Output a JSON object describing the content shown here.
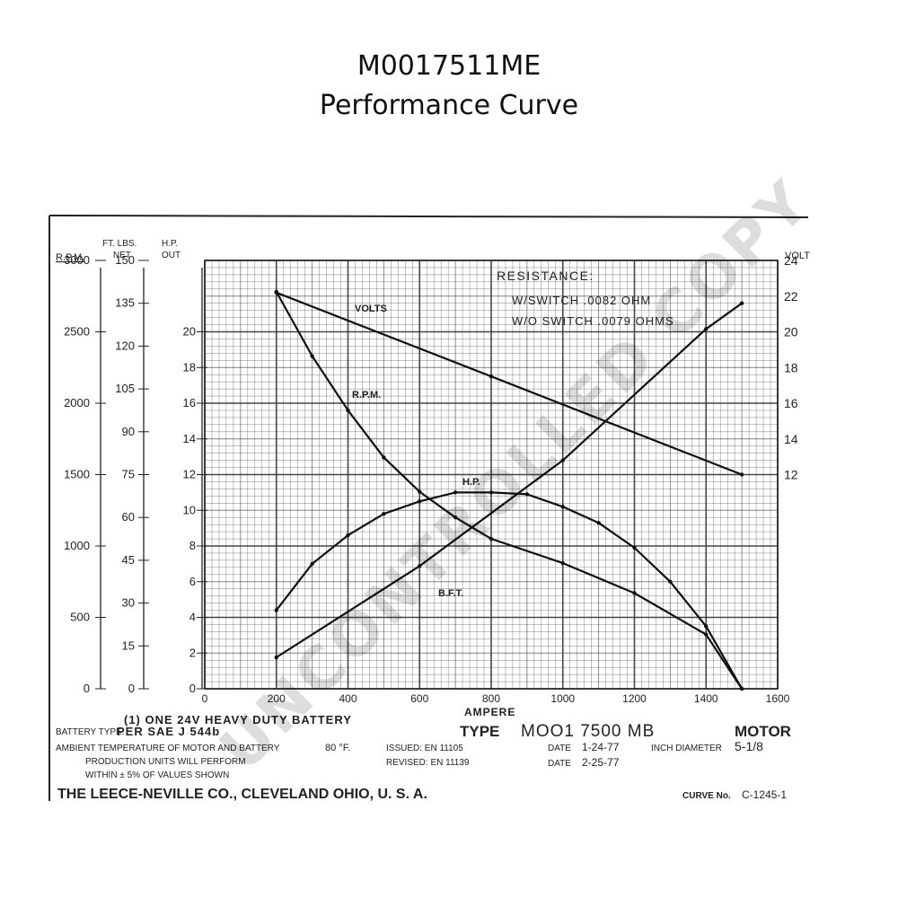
{
  "page": {
    "title": "M0017511ME",
    "subtitle": "Performance Curve"
  },
  "chart_data": {
    "type": "line",
    "title": "M0017511ME Performance Curve",
    "xlabel": "AMPERE",
    "xlim": [
      0,
      1600
    ],
    "x_ticks": [
      "0",
      "200",
      "400",
      "600",
      "800",
      "1000",
      "1200",
      "1400",
      "1600"
    ],
    "left_axes": [
      {
        "header": "R.P.M.",
        "ticks": [
          "3000",
          "2500",
          "2000",
          "1500",
          "1000",
          "500",
          "0"
        ],
        "range": [
          0,
          3000
        ]
      },
      {
        "header": "FT. LBS. NET",
        "ticks": [
          "150",
          "135",
          "120",
          "105",
          "90",
          "75",
          "60",
          "45",
          "30",
          "15",
          "0"
        ],
        "range": [
          0,
          150
        ]
      },
      {
        "header": "H.P. OUT",
        "ticks": [
          "20",
          "18",
          "16",
          "14",
          "12",
          "10",
          "8",
          "6",
          "4",
          "2",
          "0"
        ],
        "range": [
          0,
          24
        ]
      }
    ],
    "right_axis": {
      "header": "VOLT",
      "ticks": [
        "24",
        "22",
        "20",
        "18",
        "16",
        "14",
        "12"
      ],
      "range": [
        0,
        24
      ]
    },
    "series": [
      {
        "name": "VOLTS",
        "axis": "VOLT",
        "x": [
          200,
          800,
          1500
        ],
        "y": [
          22.2,
          17.5,
          12.0
        ]
      },
      {
        "name": "R.P.M.",
        "axis": "R.P.M.",
        "x": [
          200,
          300,
          400,
          500,
          600,
          700,
          800,
          1000,
          1200,
          1400,
          1500
        ],
        "y": [
          2780,
          2330,
          1950,
          1620,
          1380,
          1200,
          1050,
          880,
          670,
          380,
          0
        ]
      },
      {
        "name": "H.P.",
        "axis": "H.P. OUT",
        "x": [
          200,
          300,
          400,
          500,
          600,
          700,
          800,
          900,
          1000,
          1100,
          1200,
          1300,
          1400,
          1500
        ],
        "y": [
          4.4,
          7.0,
          8.6,
          9.8,
          10.5,
          11.0,
          11.0,
          10.9,
          10.2,
          9.3,
          7.9,
          6.0,
          3.5,
          0.0
        ]
      },
      {
        "name": "B.F.T.",
        "axis": "FT. LBS. NET",
        "x": [
          200,
          600,
          1000,
          1400,
          1500
        ],
        "y": [
          11,
          43,
          80,
          126,
          135
        ]
      }
    ],
    "annotations": {
      "resistance_title": "RESISTANCE:",
      "resistance_with_switch": "W/SWITCH  .0082  OHM",
      "resistance_without_switch": "W/O SWITCH .0079 OHMS",
      "watermark": "UNCONTROLLED COPY"
    },
    "grid": true
  },
  "footer": {
    "battery_note": "(1) ONE 24V HEAVY DUTY BATTERY",
    "battery_type_label": "BATTERY TYPE:",
    "battery_type_value": "PER SAE J 544b",
    "ambient_label": "AMBIENT TEMPERATURE OF MOTOR AND BATTERY",
    "ambient_value": "80 °F.",
    "production_line1": "PRODUCTION UNITS WILL PERFORM",
    "production_line2": "WITHIN ± 5% OF VALUES SHOWN",
    "issued": "ISSUED: EN 11105",
    "revised": "REVISED: EN 11139",
    "type_label": "TYPE",
    "type_value": "MOO1 7500 MB",
    "type_suffix": "MOTOR",
    "date_label": "DATE",
    "date_issued": "1-24-77",
    "date_revised": "2-25-77",
    "inch_diameter_label": "INCH DIAMETER",
    "inch_diameter_value": "5-1/8",
    "company": "THE LEECE-NEVILLE CO., CLEVELAND OHIO, U. S. A.",
    "curve_label": "CURVE No.",
    "curve_value": "C-1245-1"
  }
}
